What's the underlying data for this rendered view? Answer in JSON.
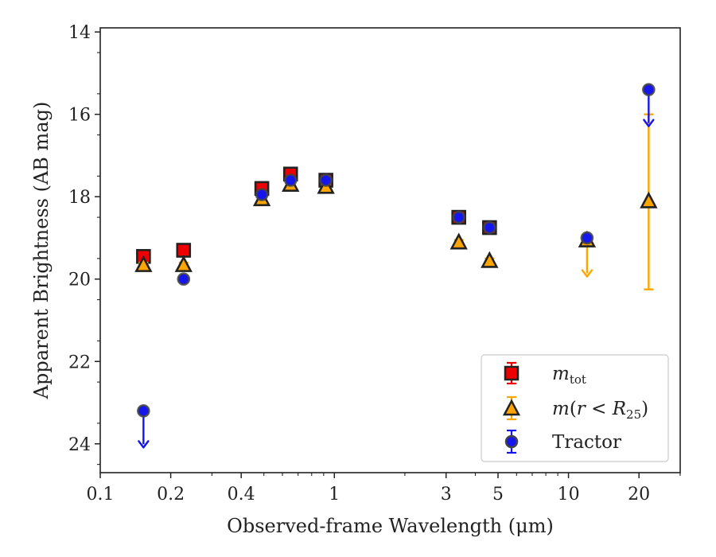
{
  "chart_data": {
    "type": "scatter",
    "xlabel": "Observed-frame Wavelength (μm)",
    "ylabel": "Apparent Brightness (AB mag)",
    "x_scale": "log",
    "y_inverted": true,
    "xlim": [
      0.1,
      30
    ],
    "ylim": [
      24.7,
      13.9
    ],
    "x_ticks": [
      {
        "value": 0.1,
        "label": "0.1"
      },
      {
        "value": 0.2,
        "label": "0.2"
      },
      {
        "value": 0.4,
        "label": "0.4"
      },
      {
        "value": 1,
        "label": "1"
      },
      {
        "value": 3,
        "label": "3"
      },
      {
        "value": 5,
        "label": "5"
      },
      {
        "value": 10,
        "label": "10"
      },
      {
        "value": 20,
        "label": "20"
      }
    ],
    "y_ticks": [
      {
        "value": 14,
        "label": "14"
      },
      {
        "value": 16,
        "label": "16"
      },
      {
        "value": 18,
        "label": "18"
      },
      {
        "value": 20,
        "label": "20"
      },
      {
        "value": 22,
        "label": "22"
      },
      {
        "value": 24,
        "label": "24"
      }
    ],
    "grid": false,
    "legend": "lower-right",
    "series": [
      {
        "key": "mtot",
        "legend_label": "m_tot",
        "marker": "square",
        "color": "#ee0000",
        "edge_color": "#222222",
        "points": [
          {
            "x": 0.153,
            "y": 19.45,
            "err": 0.1
          },
          {
            "x": 0.227,
            "y": 19.3,
            "err": 0.1
          },
          {
            "x": 0.49,
            "y": 17.8,
            "err": 0.1
          },
          {
            "x": 0.65,
            "y": 17.45,
            "err": 0.1
          },
          {
            "x": 0.92,
            "y": 17.6,
            "err": 0.1
          },
          {
            "x": 3.4,
            "y": 18.5,
            "err": 0.1
          },
          {
            "x": 4.6,
            "y": 18.75,
            "err": 0.1
          }
        ]
      },
      {
        "key": "mr25",
        "legend_label": "m(r<R25)",
        "marker": "triangle",
        "color": "#ffa500",
        "edge_color": "#222222",
        "points": [
          {
            "x": 0.153,
            "y": 19.65,
            "err": 0.05
          },
          {
            "x": 0.227,
            "y": 19.65,
            "err": 0.05
          },
          {
            "x": 0.49,
            "y": 18.05,
            "err": 0.05
          },
          {
            "x": 0.65,
            "y": 17.7,
            "err": 0.05
          },
          {
            "x": 0.92,
            "y": 17.75,
            "err": 0.05
          },
          {
            "x": 3.4,
            "y": 19.1,
            "err": 0.05
          },
          {
            "x": 4.6,
            "y": 19.55,
            "err": 0.05
          },
          {
            "x": 12.0,
            "y": 19.05,
            "upper_limit": true
          },
          {
            "x": 22.0,
            "y": 18.1,
            "err_low": 2.15,
            "err_high": 2.1
          }
        ]
      },
      {
        "key": "tractor",
        "legend_label": "Tractor",
        "marker": "circle",
        "color": "#1515ee",
        "edge_color": "#444444",
        "points": [
          {
            "x": 0.153,
            "y": 23.2,
            "upper_limit": true
          },
          {
            "x": 0.227,
            "y": 20.0,
            "err": 0.05
          },
          {
            "x": 0.49,
            "y": 17.95,
            "err": 0.05
          },
          {
            "x": 0.65,
            "y": 17.6,
            "err": 0.05
          },
          {
            "x": 0.92,
            "y": 17.6,
            "err": 0.05
          },
          {
            "x": 3.4,
            "y": 18.5,
            "err": 0.05
          },
          {
            "x": 4.6,
            "y": 18.75,
            "err": 0.05
          },
          {
            "x": 12.0,
            "y": 19.0,
            "err": 0.05
          },
          {
            "x": 22.0,
            "y": 15.4,
            "upper_limit": true
          }
        ]
      }
    ]
  }
}
